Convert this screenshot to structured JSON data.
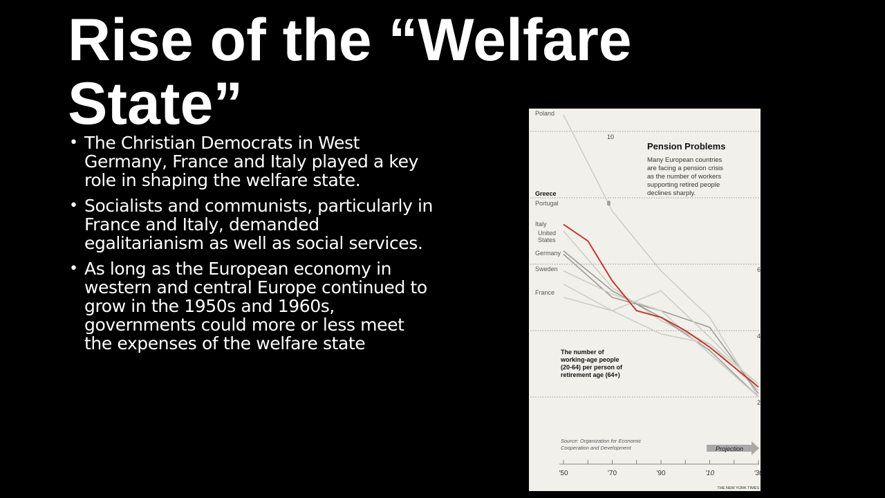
{
  "slide": {
    "title": "Rise of the “Welfare State”",
    "bullets": [
      {
        "text": "The Christian Democrats in West Germany, France and Italy played a key role in shaping the welfare state."
      },
      {
        "text": "Socialists and communists, particularly in France and Italy, demanded egalitarianism as well as social services."
      },
      {
        "text": "As long as the European economy in western and central Europe continued to grow in the 1950s and 1960s, governments could more or less meet the expenses of the welfare state"
      }
    ]
  },
  "chart_data": {
    "type": "line",
    "title": "Pension Problems",
    "subtitle": "Many European countries are facing a pension crisis as the number of workers supporting retired people declines sharply.",
    "annotation": "The number of working-age people (20-64) per person of retirement age (64+)",
    "source": "Source: Organization for Economic Cooperation and Development",
    "projection_label": "Projection",
    "credit": "THE NEW YORK TIMES",
    "x_ticks": [
      "'50",
      "'70",
      "'90",
      "'10",
      "'30"
    ],
    "y_ticks": [
      "10",
      "8",
      "6",
      "4",
      "2"
    ],
    "highlight_color": "#c0392b",
    "grid": "dotted horizontal",
    "series": [
      {
        "name": "Poland",
        "x": [
          1950,
          1970,
          1990,
          2010,
          2030
        ],
        "values": [
          10.5,
          7.6,
          5.8,
          4.4,
          2.0
        ]
      },
      {
        "name": "Greece",
        "x": [
          1950,
          1960,
          1970,
          1980,
          1990,
          2000,
          2010,
          2030
        ],
        "values": [
          7.2,
          6.7,
          5.5,
          4.6,
          4.4,
          4.0,
          3.5,
          2.3
        ]
      },
      {
        "name": "Portugal",
        "x": [
          1950,
          1970,
          1990,
          2010,
          2030
        ],
        "values": [
          7.0,
          5.3,
          4.3,
          3.6,
          2.2
        ]
      },
      {
        "name": "Italy",
        "x": [
          1950,
          1970,
          1990,
          2010,
          2030
        ],
        "values": [
          6.4,
          5.2,
          4.4,
          3.4,
          2.0
        ]
      },
      {
        "name": "United States",
        "x": [
          1950,
          1970,
          1990,
          2010,
          2030
        ],
        "values": [
          6.3,
          5.0,
          4.6,
          4.1,
          2.1
        ]
      },
      {
        "name": "Germany",
        "x": [
          1950,
          1970,
          1990,
          2010,
          2030
        ],
        "values": [
          5.8,
          5.1,
          4.6,
          3.3,
          2.0
        ]
      },
      {
        "name": "Sweden",
        "x": [
          1950,
          1970,
          1990,
          2010,
          2030
        ],
        "values": [
          5.4,
          4.6,
          3.9,
          3.6,
          2.4
        ]
      },
      {
        "name": "France",
        "x": [
          1950,
          1970,
          1990,
          2010,
          2030
        ],
        "values": [
          5.0,
          4.6,
          5.2,
          3.8,
          2.3
        ]
      }
    ]
  }
}
